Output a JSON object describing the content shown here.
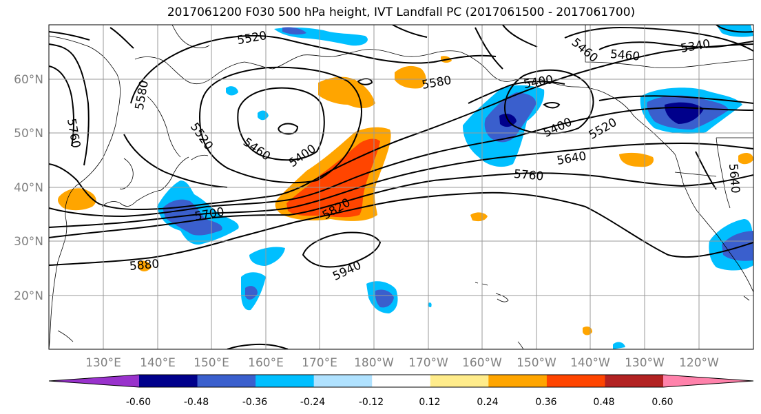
{
  "title": "2017061200 F030 500 hPa height, IVT Landfall PC (2017061500 - 2017061700)",
  "lat_labels": [
    "60°N",
    "50°N",
    "40°N",
    "30°N",
    "20°N"
  ],
  "lon_labels": [
    "130°E",
    "140°E",
    "150°E",
    "160°E",
    "170°E",
    "180°W",
    "170°W",
    "160°W",
    "150°W",
    "140°W",
    "130°W",
    "120°W"
  ],
  "contour_labels": [
    "5520",
    "5580",
    "5760",
    "5520",
    "5460",
    "5400",
    "5700",
    "5820",
    "5880",
    "5940",
    "5580",
    "5460",
    "5400",
    "5460",
    "5400",
    "5340",
    "5520",
    "5640",
    "5760",
    "5640"
  ],
  "colorbar": {
    "colors": [
      "#9932cc",
      "#00008b",
      "#3a5fcd",
      "#00bfff",
      "#b0e2ff",
      "#ffffff",
      "#ffec8b",
      "#ffa500",
      "#ff4500",
      "#b22222",
      "#ff82ab"
    ],
    "tick_labels": [
      "-0.60",
      "-0.48",
      "-0.36",
      "-0.24",
      "-0.12",
      "0.12",
      "0.24",
      "0.36",
      "0.48",
      "0.60"
    ]
  },
  "map": {
    "projection": "PlateCarree",
    "lon_range": [
      "120°E",
      "110°W"
    ],
    "lat_range": [
      "10°N",
      "70°N"
    ]
  }
}
